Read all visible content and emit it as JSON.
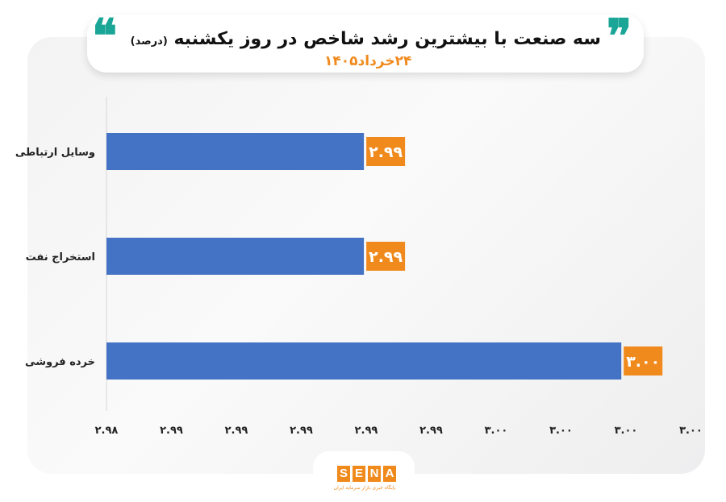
{
  "header": {
    "title": "سه صنعت با بیشترین رشد شاخص در روز یکشنبه",
    "unit": "(درصد)",
    "date": "۲۴خرداد۱۴۰۵",
    "quote_open": "❞",
    "quote_close": "❝"
  },
  "colors": {
    "bar": "#4472c4",
    "label_bg": "#f08a1c",
    "accent": "#1aa597"
  },
  "chart_data": {
    "type": "bar",
    "orientation": "horizontal",
    "categories": [
      "وسایل ارتباطی",
      "استخراج نفت",
      "خرده فروشی"
    ],
    "values": [
      2.99,
      2.99,
      3.0
    ],
    "data_labels": [
      "۲.۹۹",
      "۲.۹۹",
      "۳.۰۰"
    ],
    "x_ticks": [
      "۲.۹۸",
      "۲.۹۹",
      "۲.۹۹",
      "۲.۹۹",
      "۲.۹۹",
      "۲.۹۹",
      "۳.۰۰",
      "۳.۰۰",
      "۳.۰۰",
      "۳.۰۰"
    ],
    "xlim": [
      2.98,
      3.0025
    ],
    "grid": false
  },
  "footer": {
    "logo_letters": [
      "S",
      "E",
      "N",
      "A"
    ],
    "tagline": "پایگاه خبری بازار سرمایه ایران"
  }
}
